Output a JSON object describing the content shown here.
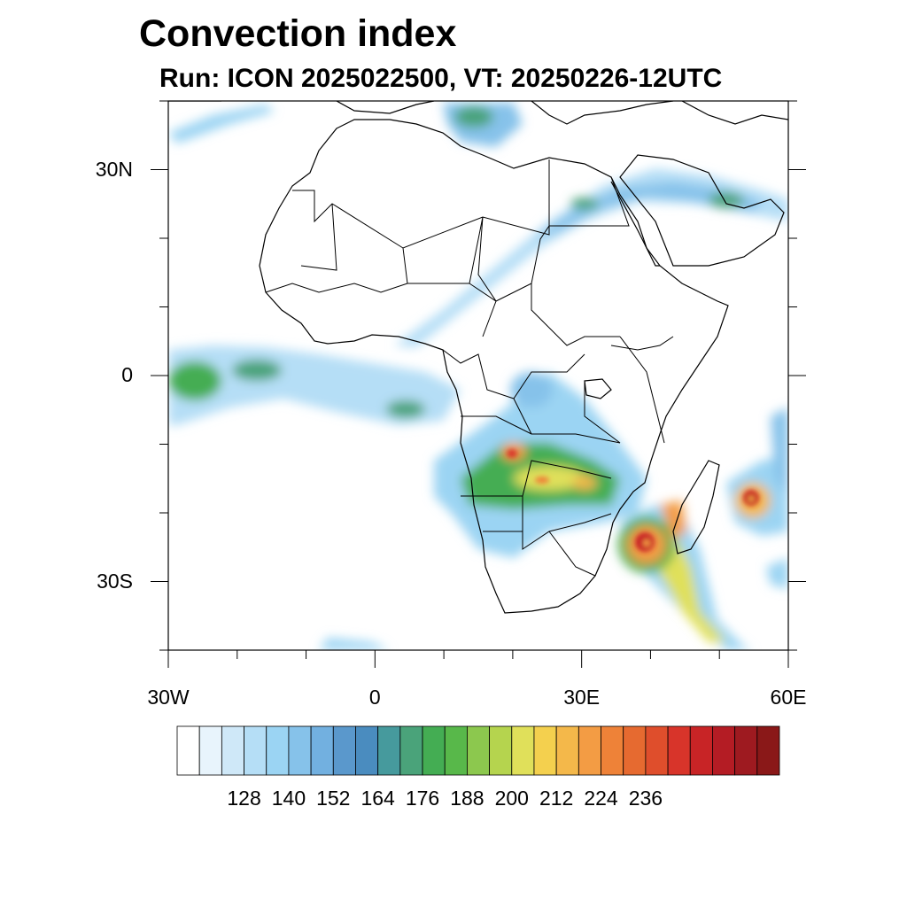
{
  "title": "Convection index",
  "subtitle": "Run: ICON 2025022500,  VT: 20250226-12UTC",
  "map": {
    "projection": "cylindrical-equidistant",
    "lon_range": [
      -30,
      60
    ],
    "lat_range": [
      -40,
      40
    ],
    "lat_ticks": [
      {
        "value": 30,
        "label": "30N"
      },
      {
        "value": 0,
        "label": "0"
      },
      {
        "value": -30,
        "label": "30S"
      }
    ],
    "lon_ticks": [
      {
        "value": -30,
        "label": "30W"
      },
      {
        "value": 0,
        "label": "0"
      },
      {
        "value": 30,
        "label": "30E"
      },
      {
        "value": 60,
        "label": "60E"
      }
    ],
    "features": [
      "Mozambique Channel tropical cyclone with intense convection (~SE of Mozambique)",
      "Tropical cyclone east of Madagascar near Mauritius",
      "Convective band over southern Central Africa (Angola, Zambia, Zimbabwe)",
      "Subtropical jet cloud band from Gulf of Guinea to Arabian Peninsula"
    ]
  },
  "colorbar": {
    "labels": [
      "128",
      "140",
      "152",
      "164",
      "176",
      "188",
      "200",
      "212",
      "224",
      "236"
    ],
    "colors": [
      "#ffffff",
      "#e8f4fc",
      "#cfe8f8",
      "#b5def6",
      "#9bd4f3",
      "#86c2ea",
      "#72b0e0",
      "#5a98cc",
      "#4a8cbf",
      "#469a9d",
      "#4aa37a",
      "#44ad53",
      "#58b84a",
      "#8cc84e",
      "#b5d44e",
      "#e0e05a",
      "#f4d04e",
      "#f4b84a",
      "#f39c44",
      "#ee8238",
      "#e66a30",
      "#df4e2c",
      "#d8342a",
      "#c82426",
      "#b41c24",
      "#9e1a20",
      "#8a1818"
    ]
  }
}
